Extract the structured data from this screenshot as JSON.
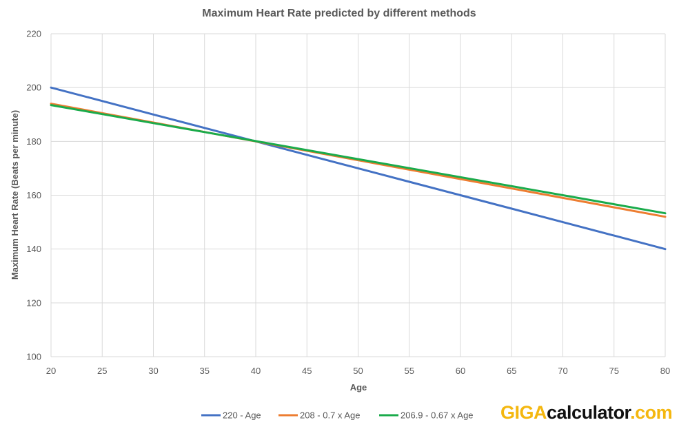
{
  "chart_data": {
    "type": "line",
    "title": "Maximum Heart Rate predicted by different methods",
    "xlabel": "Age",
    "ylabel": "Maximum Heart Rate (Beats per minute)",
    "xlim": [
      20,
      80
    ],
    "ylim": [
      100,
      220
    ],
    "xticks": [
      20,
      25,
      30,
      35,
      40,
      45,
      50,
      55,
      60,
      65,
      70,
      75,
      80
    ],
    "yticks": [
      100,
      120,
      140,
      160,
      180,
      200,
      220
    ],
    "grid": true,
    "legend_position": "bottom",
    "x": [
      20,
      25,
      30,
      35,
      40,
      45,
      50,
      55,
      60,
      65,
      70,
      75,
      80
    ],
    "series": [
      {
        "name": "220 - Age",
        "color": "#4472c4",
        "values": [
          200,
          195,
          190,
          185,
          180,
          175,
          170,
          165,
          160,
          155,
          150,
          145,
          140
        ]
      },
      {
        "name": "208 - 0.7 x Age",
        "color": "#ed7d31",
        "values": [
          194,
          190.5,
          187,
          183.5,
          180,
          176.5,
          173,
          169.5,
          166,
          162.5,
          159,
          155.5,
          152
        ]
      },
      {
        "name": "206.9 - 0.67 x Age",
        "color": "#1aab4b",
        "values": [
          193.5,
          190.15,
          186.8,
          183.45,
          180.1,
          176.75,
          173.4,
          170.05,
          166.7,
          163.35,
          160,
          156.65,
          153.3
        ]
      }
    ]
  },
  "branding": {
    "giga": "GIGA",
    "calculator": "calculator",
    "dotcom": ".com"
  }
}
